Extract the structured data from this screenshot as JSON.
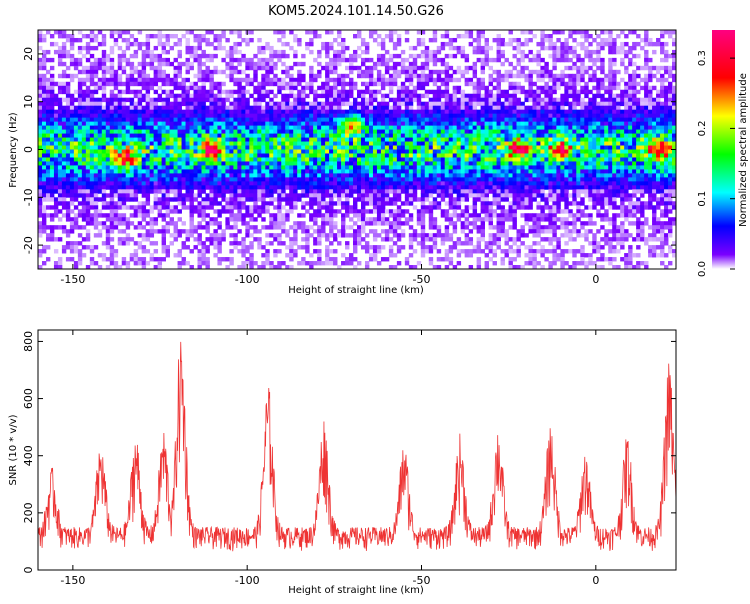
{
  "figure": {
    "title": "KOM5.2024.101.14.50.G26"
  },
  "chart_data": [
    {
      "type": "heatmap",
      "title": "KOM5.2024.101.14.50.G26",
      "xlabel": "Height of straight line (km)",
      "ylabel": "Frequency (Hz)",
      "xlim": [
        -160,
        23
      ],
      "ylim": [
        -25,
        25
      ],
      "x_ticks": [
        -150,
        -100,
        -50,
        0
      ],
      "x_tick_labels": [
        "-150",
        "-100",
        "-50",
        "0"
      ],
      "y_ticks": [
        -20,
        -10,
        0,
        10,
        20
      ],
      "y_tick_labels": [
        "-20",
        "-10",
        "0",
        "10",
        "20"
      ],
      "colorbar": {
        "label": "Normalized spectral amplitude",
        "range": [
          0.0,
          0.34
        ],
        "ticks": [
          0.0,
          0.1,
          0.2,
          0.3
        ],
        "tick_labels": [
          "0.0",
          "0.1",
          "0.2",
          "0.3"
        ],
        "colors": [
          "#ffffff",
          "#7a00ff",
          "#0000ff",
          "#00ffff",
          "#00ff00",
          "#ffff00",
          "#ff0000",
          "#ff0080"
        ]
      },
      "description_of_values": "Strong amplitude band centered near 0 Hz (approx -5 to +5 Hz) spanning all heights; weaker purple noise elsewhere; peak amplitude ~0.3 near -70 km and +18 km."
    },
    {
      "type": "line",
      "xlabel": "Height of straight line (km)",
      "ylabel": "SNR (10 * v/v)",
      "xlim": [
        -160,
        23
      ],
      "ylim": [
        0,
        840
      ],
      "x_ticks": [
        -150,
        -100,
        -50,
        0
      ],
      "x_tick_labels": [
        "-150",
        "-100",
        "-50",
        "0"
      ],
      "y_ticks": [
        0,
        200,
        400,
        600,
        800
      ],
      "y_tick_labels": [
        "0",
        "200",
        "400",
        "600",
        "800"
      ],
      "color": "#ee3333",
      "baseline": 150,
      "peaks": [
        {
          "x": -156,
          "y": 360
        },
        {
          "x": -142,
          "y": 450
        },
        {
          "x": -132,
          "y": 480
        },
        {
          "x": -124,
          "y": 500
        },
        {
          "x": -119,
          "y": 840
        },
        {
          "x": -94,
          "y": 660
        },
        {
          "x": -78,
          "y": 540
        },
        {
          "x": -55,
          "y": 450
        },
        {
          "x": -39,
          "y": 480
        },
        {
          "x": -28,
          "y": 510
        },
        {
          "x": -13,
          "y": 520
        },
        {
          "x": -3,
          "y": 420
        },
        {
          "x": 9,
          "y": 480
        },
        {
          "x": 21,
          "y": 740
        }
      ]
    }
  ]
}
